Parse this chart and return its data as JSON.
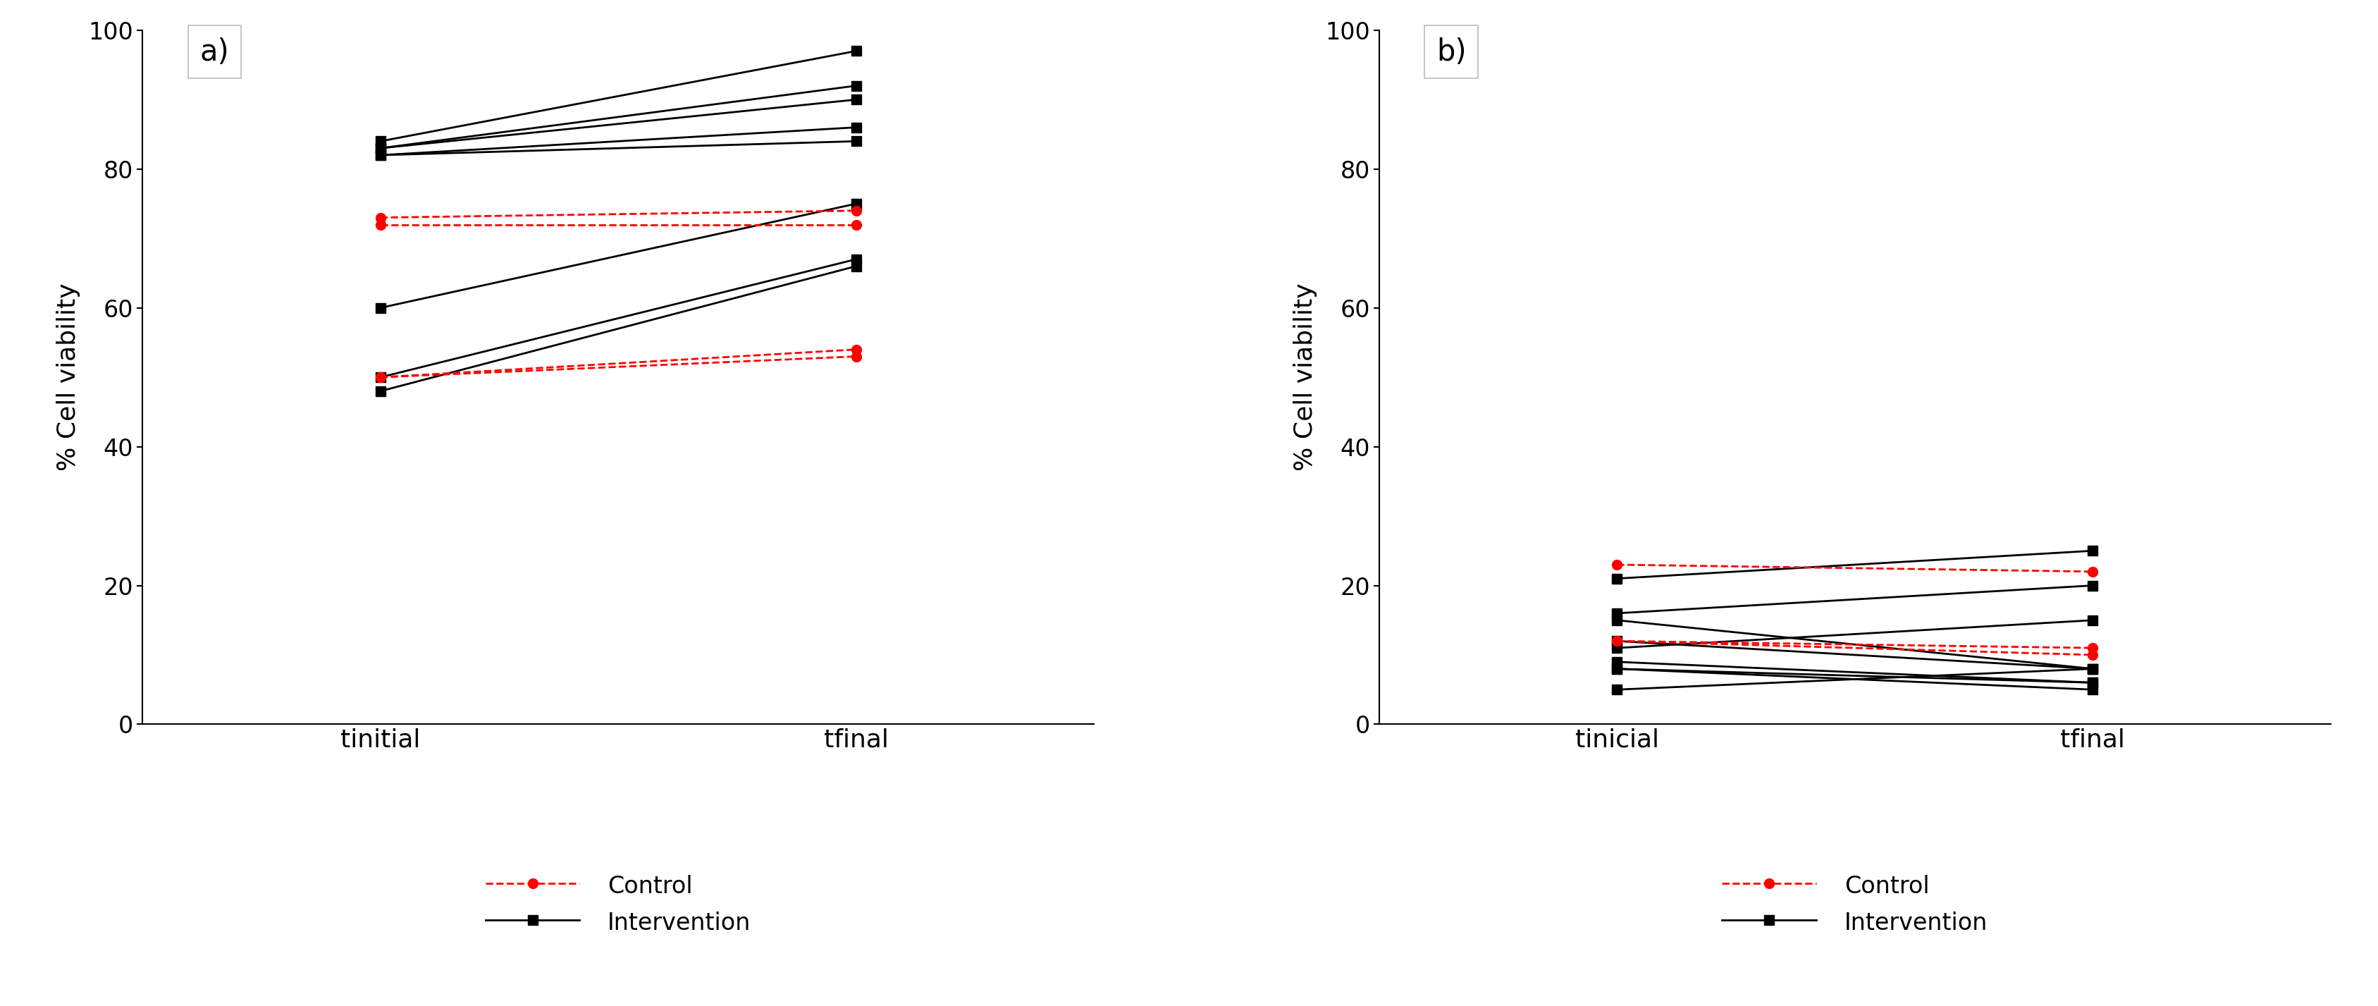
{
  "panel_a": {
    "label": "a)",
    "xlabel_initial": "tinitial",
    "xlabel_final": "tfinal",
    "ylabel": "% Cell viability",
    "ylim": [
      0,
      100
    ],
    "yticks": [
      0,
      20,
      40,
      60,
      80,
      100
    ],
    "control_lines": [
      [
        72,
        72
      ],
      [
        73,
        74
      ],
      [
        50,
        54
      ],
      [
        50,
        53
      ]
    ],
    "intervention_lines": [
      [
        84,
        97
      ],
      [
        83,
        92
      ],
      [
        83,
        90
      ],
      [
        82,
        86
      ],
      [
        82,
        84
      ],
      [
        60,
        75
      ],
      [
        50,
        67
      ],
      [
        48,
        66
      ]
    ]
  },
  "panel_b": {
    "label": "b)",
    "xlabel_initial": "tinicial",
    "xlabel_final": "tfinal",
    "ylabel": "% Cell viability",
    "ylim": [
      0,
      100
    ],
    "yticks": [
      0,
      20,
      40,
      60,
      80,
      100
    ],
    "control_lines": [
      [
        23,
        22
      ],
      [
        12,
        10
      ],
      [
        12,
        11
      ]
    ],
    "intervention_lines": [
      [
        21,
        25
      ],
      [
        16,
        20
      ],
      [
        15,
        8
      ],
      [
        12,
        8
      ],
      [
        11,
        15
      ],
      [
        9,
        6
      ],
      [
        8,
        6
      ],
      [
        8,
        5
      ],
      [
        5,
        8
      ]
    ]
  },
  "control_color": "#FF0000",
  "intervention_color": "#000000",
  "background_color": "#FFFFFF",
  "line_width": 2.0,
  "marker_size": 10,
  "label_fontsize": 26,
  "tick_fontsize": 24,
  "legend_fontsize": 24,
  "annot_fontsize": 30
}
